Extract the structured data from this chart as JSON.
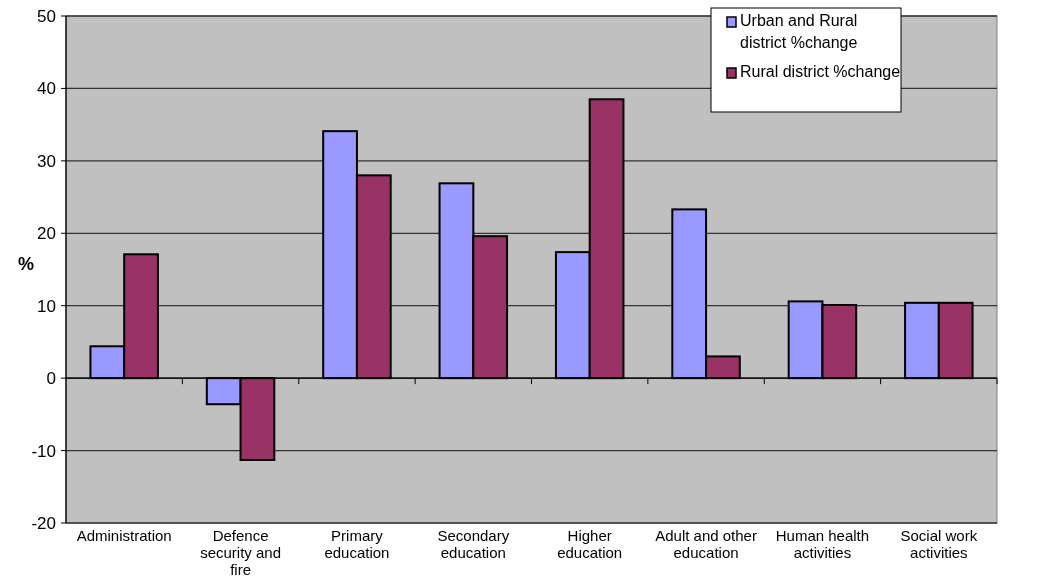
{
  "chart_data": {
    "type": "bar",
    "ylabel": "%",
    "categories": [
      "Administration",
      "Defence security and fire",
      "Primary education",
      "Secondary education",
      "Higher education",
      "Adult and other education",
      "Human health activities",
      "Social work activities"
    ],
    "series": [
      {
        "name": "Urban and Rural district %change",
        "color": "#9999ff",
        "values": [
          4.4,
          -3.6,
          34.1,
          26.9,
          17.4,
          23.3,
          10.6,
          10.4
        ]
      },
      {
        "name": "Rural district %change",
        "color": "#993366",
        "values": [
          17.1,
          -11.3,
          28.0,
          19.6,
          38.5,
          3.0,
          10.1,
          10.4
        ]
      }
    ],
    "ylim": [
      -20,
      50
    ],
    "yticks": [
      -20,
      -10,
      0,
      10,
      20,
      30,
      40,
      50
    ],
    "grid": "y",
    "legend": "top right"
  }
}
